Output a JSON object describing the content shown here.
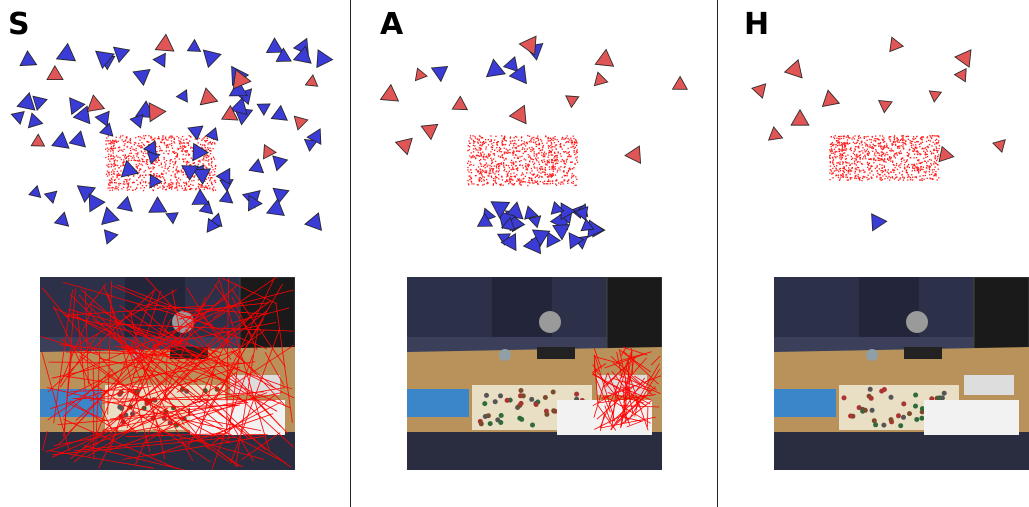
{
  "panels": [
    {
      "label": "S",
      "estimated_cameras_color": "#3b3bd6",
      "reference_cameras_color": "#e05555",
      "points_color": "#ff1a1a"
    },
    {
      "label": "A",
      "estimated_cameras_color": "#3b3bd6",
      "reference_cameras_color": "#e05555",
      "points_color": "#ff1a1a"
    },
    {
      "label": "H",
      "estimated_cameras_color": "#3b3bd6",
      "reference_cameras_color": "#e05555",
      "points_color": "#ff1a1a"
    }
  ],
  "colors": {
    "background": "#ffffff",
    "divider": "#222222",
    "match_lines": "#ff0000"
  }
}
